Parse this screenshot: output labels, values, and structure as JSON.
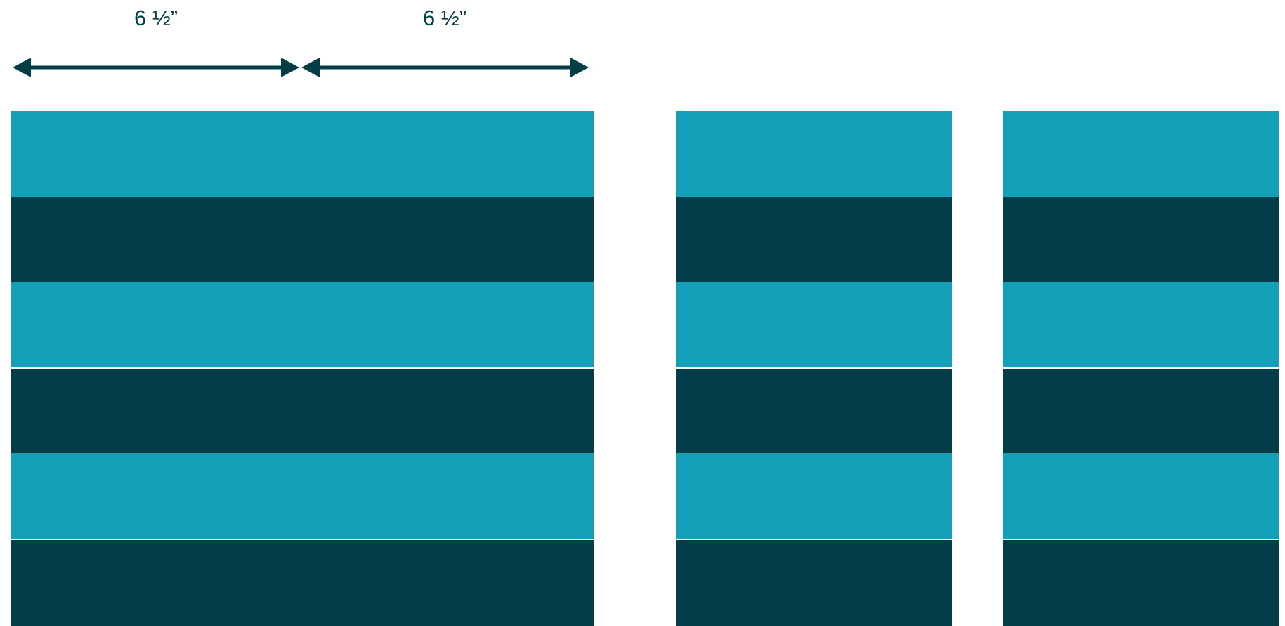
{
  "measurements": {
    "first_width": "6 ½”",
    "second_width": "6 ½”"
  },
  "colors": {
    "light_band": "#139fb7",
    "dark_band": "#023d48",
    "arrow": "#033d48",
    "background": "#ffffff"
  },
  "strips": [
    {
      "name": "wide-strip",
      "bands": [
        "light",
        "dark",
        "light",
        "dark",
        "light",
        "dark"
      ]
    },
    {
      "name": "middle-strip",
      "bands": [
        "light",
        "dark",
        "light",
        "dark",
        "light",
        "dark"
      ]
    },
    {
      "name": "right-strip",
      "bands": [
        "light",
        "dark",
        "light",
        "dark",
        "light",
        "dark"
      ]
    }
  ]
}
